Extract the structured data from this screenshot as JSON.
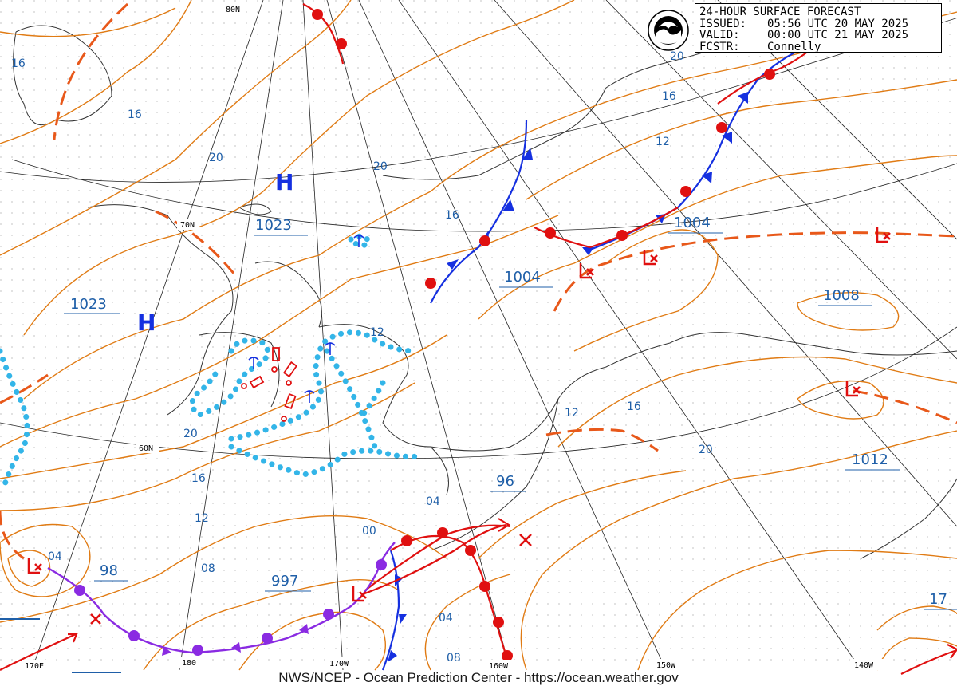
{
  "info_box": {
    "title": "24-HOUR SURFACE FORECAST",
    "issued_label": "ISSUED:",
    "issued_value": "05:56 UTC 20 MAY 2025",
    "valid_label": "VALID:",
    "valid_value": "00:00 UTC 21 MAY 2025",
    "forecaster_label": "FCSTR:",
    "forecaster_value": "Connelly"
  },
  "footer": "NWS/NCEP - Ocean Prediction Center - https://ocean.weather.gov",
  "colors": {
    "isobar": "#e07b14",
    "isobar_label": "#1f5fa8",
    "cold_front": "#1530e0",
    "warm_front": "#e01010",
    "occluded_front": "#8a2be2",
    "trough": "#e8581a",
    "ice_fog": "#33b5e8",
    "high": "#1530e0",
    "low": "#e01010"
  },
  "grid_labels": {
    "lat_80": "80N",
    "lat_70": "70N",
    "lat_60": "60N",
    "lon_170e": "170E",
    "lon_180": "180",
    "lon_170w": "170W",
    "lon_160w": "160W",
    "lon_150w": "150W",
    "lon_140w": "140W"
  },
  "highs": [
    {
      "symbol": "H",
      "pressure": "1023"
    },
    {
      "symbol": "H",
      "pressure": "1023"
    }
  ],
  "lows": [
    {
      "symbol": "L",
      "pressure": "1004"
    },
    {
      "symbol": "L",
      "pressure": "1004"
    },
    {
      "symbol": "L",
      "pressure": "1008"
    },
    {
      "symbol": "L",
      "pressure": "1012"
    },
    {
      "symbol": "L",
      "pressure": "997"
    },
    {
      "symbol": "L",
      "pressure": "98"
    },
    {
      "symbol": "L",
      "pressure": "96"
    },
    {
      "symbol": "L",
      "pressure": "17"
    }
  ],
  "isobar_labels": [
    "16",
    "16",
    "20",
    "20",
    "16",
    "12",
    "20",
    "16",
    "12",
    "12",
    "16",
    "20",
    "16",
    "12",
    "04",
    "00",
    "08",
    "04",
    "08",
    "04",
    "20"
  ]
}
